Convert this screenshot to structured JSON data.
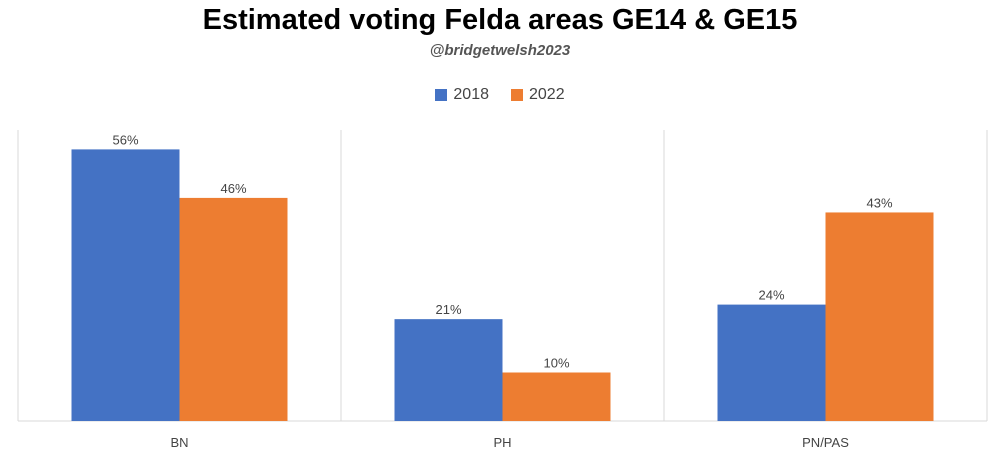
{
  "title": "Estimated voting Felda areas GE14 & GE15",
  "subtitle": "@bridgetwelsh2023",
  "colors": {
    "2018": "#4472C4",
    "2022": "#ED7D31"
  },
  "chart_data": {
    "type": "bar",
    "categories": [
      "BN",
      "PH",
      "PN/PAS"
    ],
    "series": [
      {
        "name": "2018",
        "values": [
          56,
          21,
          24
        ],
        "labels": [
          "56%",
          "21%",
          "24%"
        ]
      },
      {
        "name": "2022",
        "values": [
          46,
          10,
          43
        ],
        "labels": [
          "46%",
          "10%",
          "43%"
        ]
      }
    ],
    "ylim": [
      0,
      60
    ],
    "grid": false,
    "legend": "top-center"
  }
}
